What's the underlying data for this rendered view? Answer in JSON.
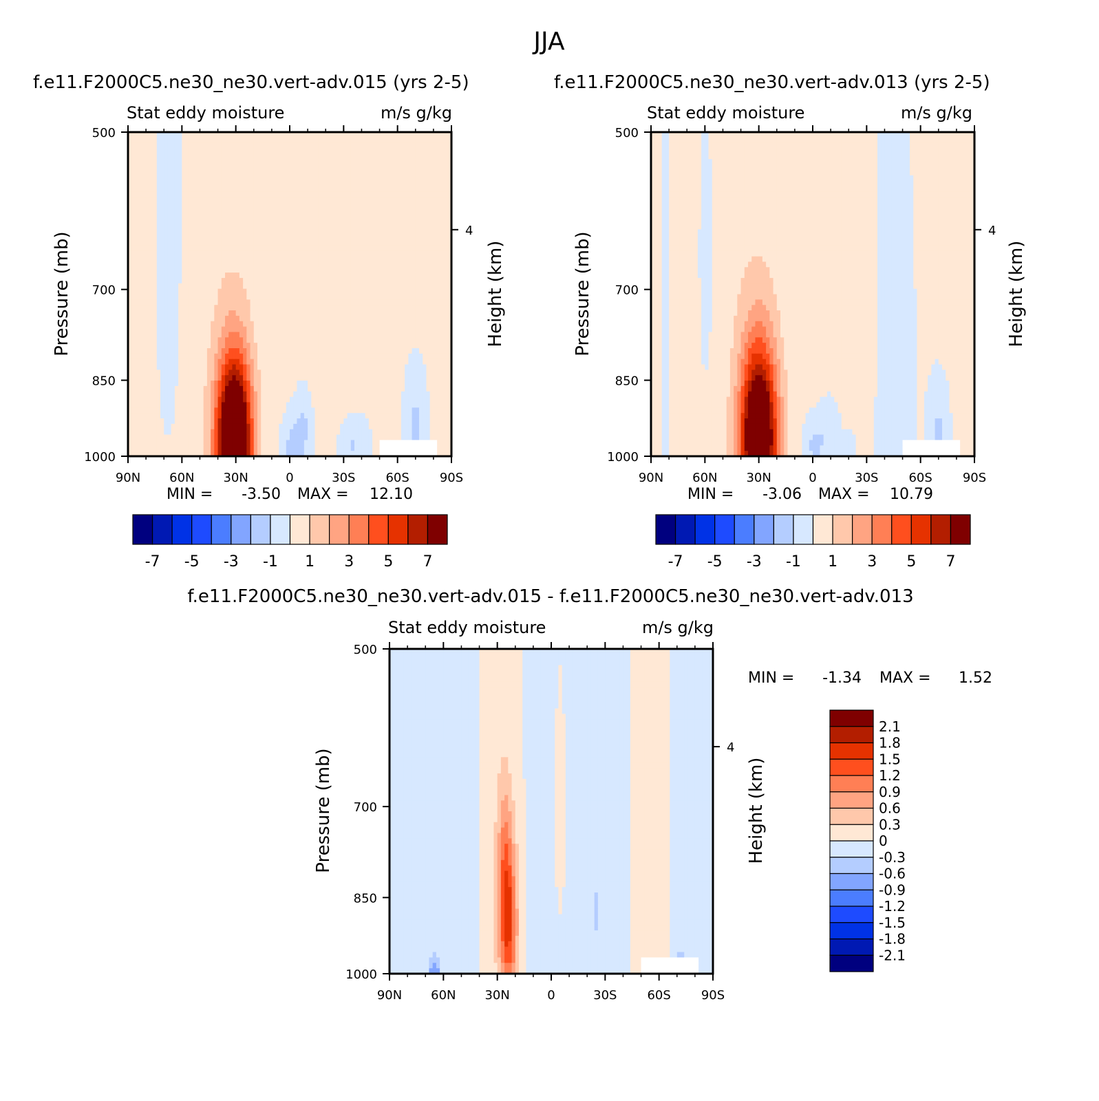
{
  "figure": {
    "title": "JJA"
  },
  "colors": {
    "diverging": [
      "#00007f",
      "#0019b3",
      "#0032e6",
      "#1e4bff",
      "#4b7dff",
      "#82a5ff",
      "#b4cdff",
      "#d7e8ff",
      "#ffe8d5",
      "#ffc8ab",
      "#ffa482",
      "#ff7f55",
      "#ff4f1e",
      "#e63200",
      "#b31e00",
      "#7f0000"
    ],
    "blank": "#ffffff"
  },
  "chart_data": [
    {
      "type": "contour",
      "id": "p1",
      "title_left": "f.e11.F2000C5.ne30_ne30.vert-adv.015 (yrs 2-5)",
      "subtitle_left": "Stat eddy moisture",
      "subtitle_right": "m/s g/kg",
      "ylabel": "Pressure (mb)",
      "ylabel_right": "Height (km)",
      "x_ticks": [
        "90N",
        "60N",
        "30N",
        "0",
        "30S",
        "60S",
        "90S"
      ],
      "y_ticks": [
        "500",
        "700",
        "850",
        "1000"
      ],
      "y_tick_values": [
        500,
        700,
        850,
        1000
      ],
      "right_ticks": [
        "4"
      ],
      "ylim": [
        1000,
        500
      ],
      "xlim": [
        90,
        -90
      ],
      "min_label": "MIN =",
      "min_value": "-3.50",
      "max_label": "MAX =",
      "max_value": "12.10",
      "colorbar": {
        "orientation": "horizontal",
        "labels": [
          "-7",
          "-5",
          "-3",
          "-1",
          "1",
          "3",
          "5",
          "7"
        ]
      },
      "field": {
        "levels": [
          -7,
          -6,
          -5,
          -4,
          -3,
          -2,
          -1,
          0,
          1,
          2,
          3,
          4,
          5,
          6,
          7
        ],
        "background": 0.1,
        "features": [
          {
            "name": "broad positive band",
            "lat": 40,
            "p": 760,
            "wlat": 24,
            "wp": 900,
            "amp": 0.55,
            "tiltLat": -6
          },
          {
            "name": "subtropical maximum",
            "lat": 31,
            "p": 970,
            "wlat": 9.5,
            "wp": 160,
            "amp": 12.1,
            "tiltLat": 0
          },
          {
            "name": "NH mid-lat negative",
            "lat": 65,
            "p": 700,
            "wlat": 10,
            "wp": 450,
            "amp": -0.35,
            "tiltLat": 0
          },
          {
            "name": "tropical negative",
            "lat": -2,
            "p": 980,
            "wlat": 6,
            "wp": 60,
            "amp": -1.6,
            "tiltLat": 0
          },
          {
            "name": "tropical secondary negative",
            "lat": -8,
            "p": 930,
            "wlat": 5,
            "wp": 70,
            "amp": -1.2,
            "tiltLat": 0
          },
          {
            "name": "SH subtropical positive",
            "lat": -25,
            "p": 720,
            "wlat": 18,
            "wp": 260,
            "amp": 0.6,
            "tiltLat": 8
          },
          {
            "name": "SH negative",
            "lat": -35,
            "p": 980,
            "wlat": 8,
            "wp": 60,
            "amp": -1.3,
            "tiltLat": 0
          },
          {
            "name": "SH high-lat negative",
            "lat": -70,
            "p": 940,
            "wlat": 5,
            "wp": 90,
            "amp": -1.4,
            "tiltLat": 0
          },
          {
            "name": "SH high-lat weak positive",
            "lat": -88,
            "p": 700,
            "wlat": 3,
            "wp": 200,
            "amp": 0.5,
            "tiltLat": 0
          }
        ],
        "missing_box": {
          "lat0": -50,
          "lat1": -82,
          "p0": 965,
          "p1": 1000
        }
      }
    },
    {
      "type": "contour",
      "id": "p2",
      "title_left": "f.e11.F2000C5.ne30_ne30.vert-adv.013 (yrs 2-5)",
      "subtitle_left": "Stat eddy moisture",
      "subtitle_right": "m/s g/kg",
      "ylabel": "Pressure (mb)",
      "ylabel_right": "Height (km)",
      "x_ticks": [
        "90N",
        "60N",
        "30N",
        "0",
        "30S",
        "60S",
        "90S"
      ],
      "y_ticks": [
        "500",
        "700",
        "850",
        "1000"
      ],
      "y_tick_values": [
        500,
        700,
        850,
        1000
      ],
      "right_ticks": [
        "4"
      ],
      "ylim": [
        1000,
        500
      ],
      "xlim": [
        90,
        -90
      ],
      "min_label": "MIN =",
      "min_value": "-3.06",
      "max_label": "MAX =",
      "max_value": "10.79",
      "colorbar": {
        "orientation": "horizontal",
        "labels": [
          "-7",
          "-5",
          "-3",
          "-1",
          "1",
          "3",
          "5",
          "7"
        ]
      },
      "field": {
        "levels": [
          -7,
          -6,
          -5,
          -4,
          -3,
          -2,
          -1,
          0,
          1,
          2,
          3,
          4,
          5,
          6,
          7
        ],
        "background": 0.15,
        "features": [
          {
            "name": "broad positive band",
            "lat": 40,
            "p": 760,
            "wlat": 26,
            "wp": 900,
            "amp": 0.5,
            "tiltLat": -6
          },
          {
            "name": "subtropical maximum",
            "lat": 30,
            "p": 960,
            "wlat": 10,
            "wp": 170,
            "amp": 10.8,
            "tiltLat": 0
          },
          {
            "name": "NH mid-lat negative",
            "lat": 58,
            "p": 720,
            "wlat": 9,
            "wp": 450,
            "amp": -0.45,
            "tiltLat": 0
          },
          {
            "name": "NH polar negative",
            "lat": 82,
            "p": 700,
            "wlat": 3,
            "wp": 450,
            "amp": -0.35,
            "tiltLat": 0
          },
          {
            "name": "tropical negative",
            "lat": -1,
            "p": 980,
            "wlat": 6,
            "wp": 60,
            "amp": -1.4,
            "tiltLat": 0
          },
          {
            "name": "tropical secondary negative",
            "lat": -10,
            "p": 940,
            "wlat": 6,
            "wp": 70,
            "amp": -1.0,
            "tiltLat": 0
          },
          {
            "name": "SH subtropical positive",
            "lat": -22,
            "p": 720,
            "wlat": 16,
            "wp": 280,
            "amp": 0.55,
            "tiltLat": 8
          },
          {
            "name": "SH negative",
            "lat": -43,
            "p": 850,
            "wlat": 14,
            "wp": 500,
            "amp": -0.45,
            "tiltLat": 0
          },
          {
            "name": "SH high-lat negative",
            "lat": -70,
            "p": 950,
            "wlat": 5,
            "wp": 90,
            "amp": -1.3,
            "tiltLat": 0
          },
          {
            "name": "SH weak lower negative",
            "lat": -20,
            "p": 990,
            "wlat": 4,
            "wp": 40,
            "amp": -1.1,
            "tiltLat": 0
          }
        ],
        "missing_box": {
          "lat0": -50,
          "lat1": -82,
          "p0": 965,
          "p1": 1000
        }
      }
    },
    {
      "type": "contour",
      "id": "p3",
      "title_left": "f.e11.F2000C5.ne30_ne30.vert-adv.015 - f.e11.F2000C5.ne30_ne30.vert-adv.013",
      "subtitle_left": "Stat eddy moisture",
      "subtitle_right": "m/s g/kg",
      "ylabel": "Pressure (mb)",
      "ylabel_right": "Height (km)",
      "x_ticks": [
        "90N",
        "60N",
        "30N",
        "0",
        "30S",
        "60S",
        "90S"
      ],
      "y_ticks": [
        "500",
        "700",
        "850",
        "1000"
      ],
      "y_tick_values": [
        500,
        700,
        850,
        1000
      ],
      "right_ticks": [
        "4"
      ],
      "ylim": [
        1000,
        500
      ],
      "xlim": [
        90,
        -90
      ],
      "min_label": "MIN =",
      "min_value": "-1.34",
      "max_label": "MAX =",
      "max_value": "1.52",
      "colorbar": {
        "orientation": "vertical",
        "labels": [
          "2.1",
          "1.8",
          "1.5",
          "1.2",
          "0.9",
          "0.6",
          "0.3",
          "0",
          "-0.3",
          "-0.6",
          "-0.9",
          "-1.2",
          "-1.5",
          "-1.8",
          "-2.1"
        ]
      },
      "field": {
        "levels": [
          -2.1,
          -1.8,
          -1.5,
          -1.2,
          -0.9,
          -0.6,
          -0.3,
          0,
          0.3,
          0.6,
          0.9,
          1.2,
          1.5,
          1.8,
          2.1
        ],
        "background": -0.12,
        "features": [
          {
            "name": "NH positive band",
            "lat": 28,
            "p": 760,
            "wlat": 14,
            "wp": 900,
            "amp": 0.28,
            "tiltLat": 0
          },
          {
            "name": "difference maximum",
            "lat": 24,
            "p": 900,
            "wlat": 5,
            "wp": 140,
            "amp": 1.52,
            "tiltLat": 0
          },
          {
            "name": "difference upper lobe",
            "lat": 26,
            "p": 760,
            "wlat": 4,
            "wp": 110,
            "amp": 0.55,
            "tiltLat": 0
          },
          {
            "name": "SH positive band",
            "lat": -55,
            "p": 760,
            "wlat": 12,
            "wp": 900,
            "amp": 0.28,
            "tiltLat": 0
          },
          {
            "name": "mid positive patch",
            "lat": -5,
            "p": 700,
            "wlat": 4,
            "wp": 250,
            "amp": 0.2,
            "tiltLat": 0
          },
          {
            "name": "NH lower negative",
            "lat": 65,
            "p": 990,
            "wlat": 3,
            "wp": 25,
            "amp": -0.8,
            "tiltLat": 0
          },
          {
            "name": "SH lower negative",
            "lat": -72,
            "p": 985,
            "wlat": 2,
            "wp": 25,
            "amp": -1.34,
            "tiltLat": 0
          },
          {
            "name": "tropical negative streak",
            "lat": -25,
            "p": 880,
            "wlat": 1.5,
            "wp": 40,
            "amp": -0.4,
            "tiltLat": 0
          }
        ],
        "missing_box": {
          "lat0": -50,
          "lat1": -82,
          "p0": 965,
          "p1": 1000
        }
      }
    }
  ]
}
